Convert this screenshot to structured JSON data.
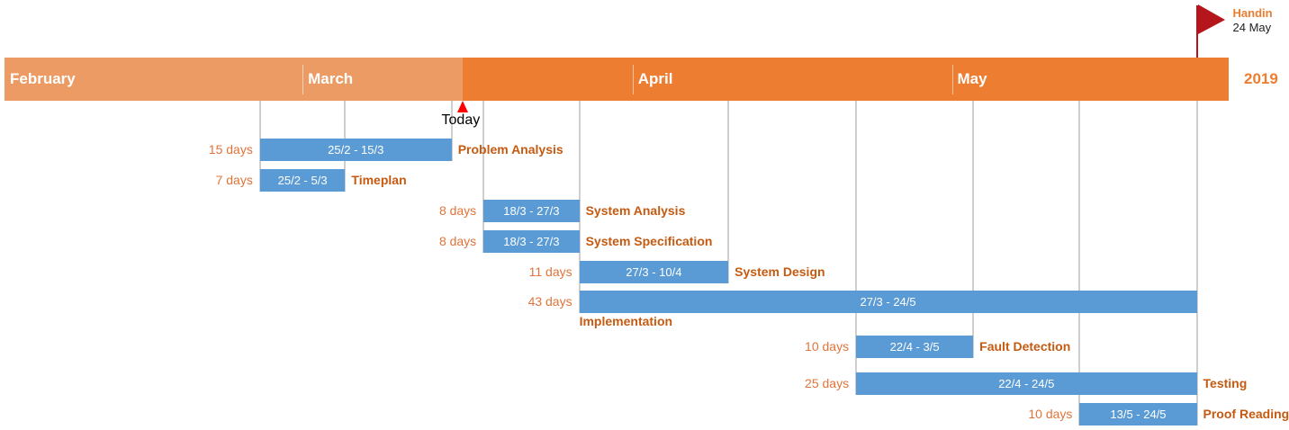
{
  "year": "2019",
  "today": {
    "label": "Today",
    "date": "2019-03-16"
  },
  "milestone": {
    "title": "Handin",
    "date_label": "24 May",
    "date": "2019-05-24",
    "icon": "flag-icon"
  },
  "timeline": {
    "start": "2019-02-01",
    "end": "2019-05-27"
  },
  "months": [
    {
      "name": "February",
      "start": "2019-02-01"
    },
    {
      "name": "March",
      "start": "2019-03-01"
    },
    {
      "name": "April",
      "start": "2019-04-01"
    },
    {
      "name": "May",
      "start": "2019-05-01"
    }
  ],
  "colors": {
    "band_past": "#eb9b63",
    "band_future": "#ed7d31",
    "bar": "#5b9bd5",
    "duration_text": "#e0743a",
    "name_text": "#c55a11",
    "year_text": "#ed7d31",
    "today_marker": "#ff0000",
    "flag": "#b4161b",
    "handin_text": "#ed7d31",
    "grid": "#cfcfcf"
  },
  "tasks": [
    {
      "name": "Problem Analysis",
      "duration": "15 days",
      "range": "25/2 - 15/3",
      "start": "2019-02-25",
      "end": "2019-03-15",
      "name_position": "right"
    },
    {
      "name": "Timeplan",
      "duration": "7 days",
      "range": "25/2 - 5/3",
      "start": "2019-02-25",
      "end": "2019-03-05",
      "name_position": "right"
    },
    {
      "name": "System Analysis",
      "duration": "8 days",
      "range": "18/3 - 27/3",
      "start": "2019-03-18",
      "end": "2019-03-27",
      "name_position": "right"
    },
    {
      "name": "System Specification",
      "duration": "8 days",
      "range": "18/3 - 27/3",
      "start": "2019-03-18",
      "end": "2019-03-27",
      "name_position": "right"
    },
    {
      "name": "System Design",
      "duration": "11 days",
      "range": "27/3 - 10/4",
      "start": "2019-03-27",
      "end": "2019-04-10",
      "name_position": "right"
    },
    {
      "name": "Implementation",
      "duration": "43 days",
      "range": "27/3 - 24/5",
      "start": "2019-03-27",
      "end": "2019-05-24",
      "name_position": "below"
    },
    {
      "name": "Fault Detection",
      "duration": "10 days",
      "range": "22/4 - 3/5",
      "start": "2019-04-22",
      "end": "2019-05-03",
      "name_position": "right"
    },
    {
      "name": "Testing",
      "duration": "25 days",
      "range": "22/4 - 24/5",
      "start": "2019-04-22",
      "end": "2019-05-24",
      "name_position": "right"
    },
    {
      "name": "Proof Reading",
      "duration": "10 days",
      "range": "13/5 - 24/5",
      "start": "2019-05-13",
      "end": "2019-05-24",
      "name_position": "right"
    }
  ]
}
